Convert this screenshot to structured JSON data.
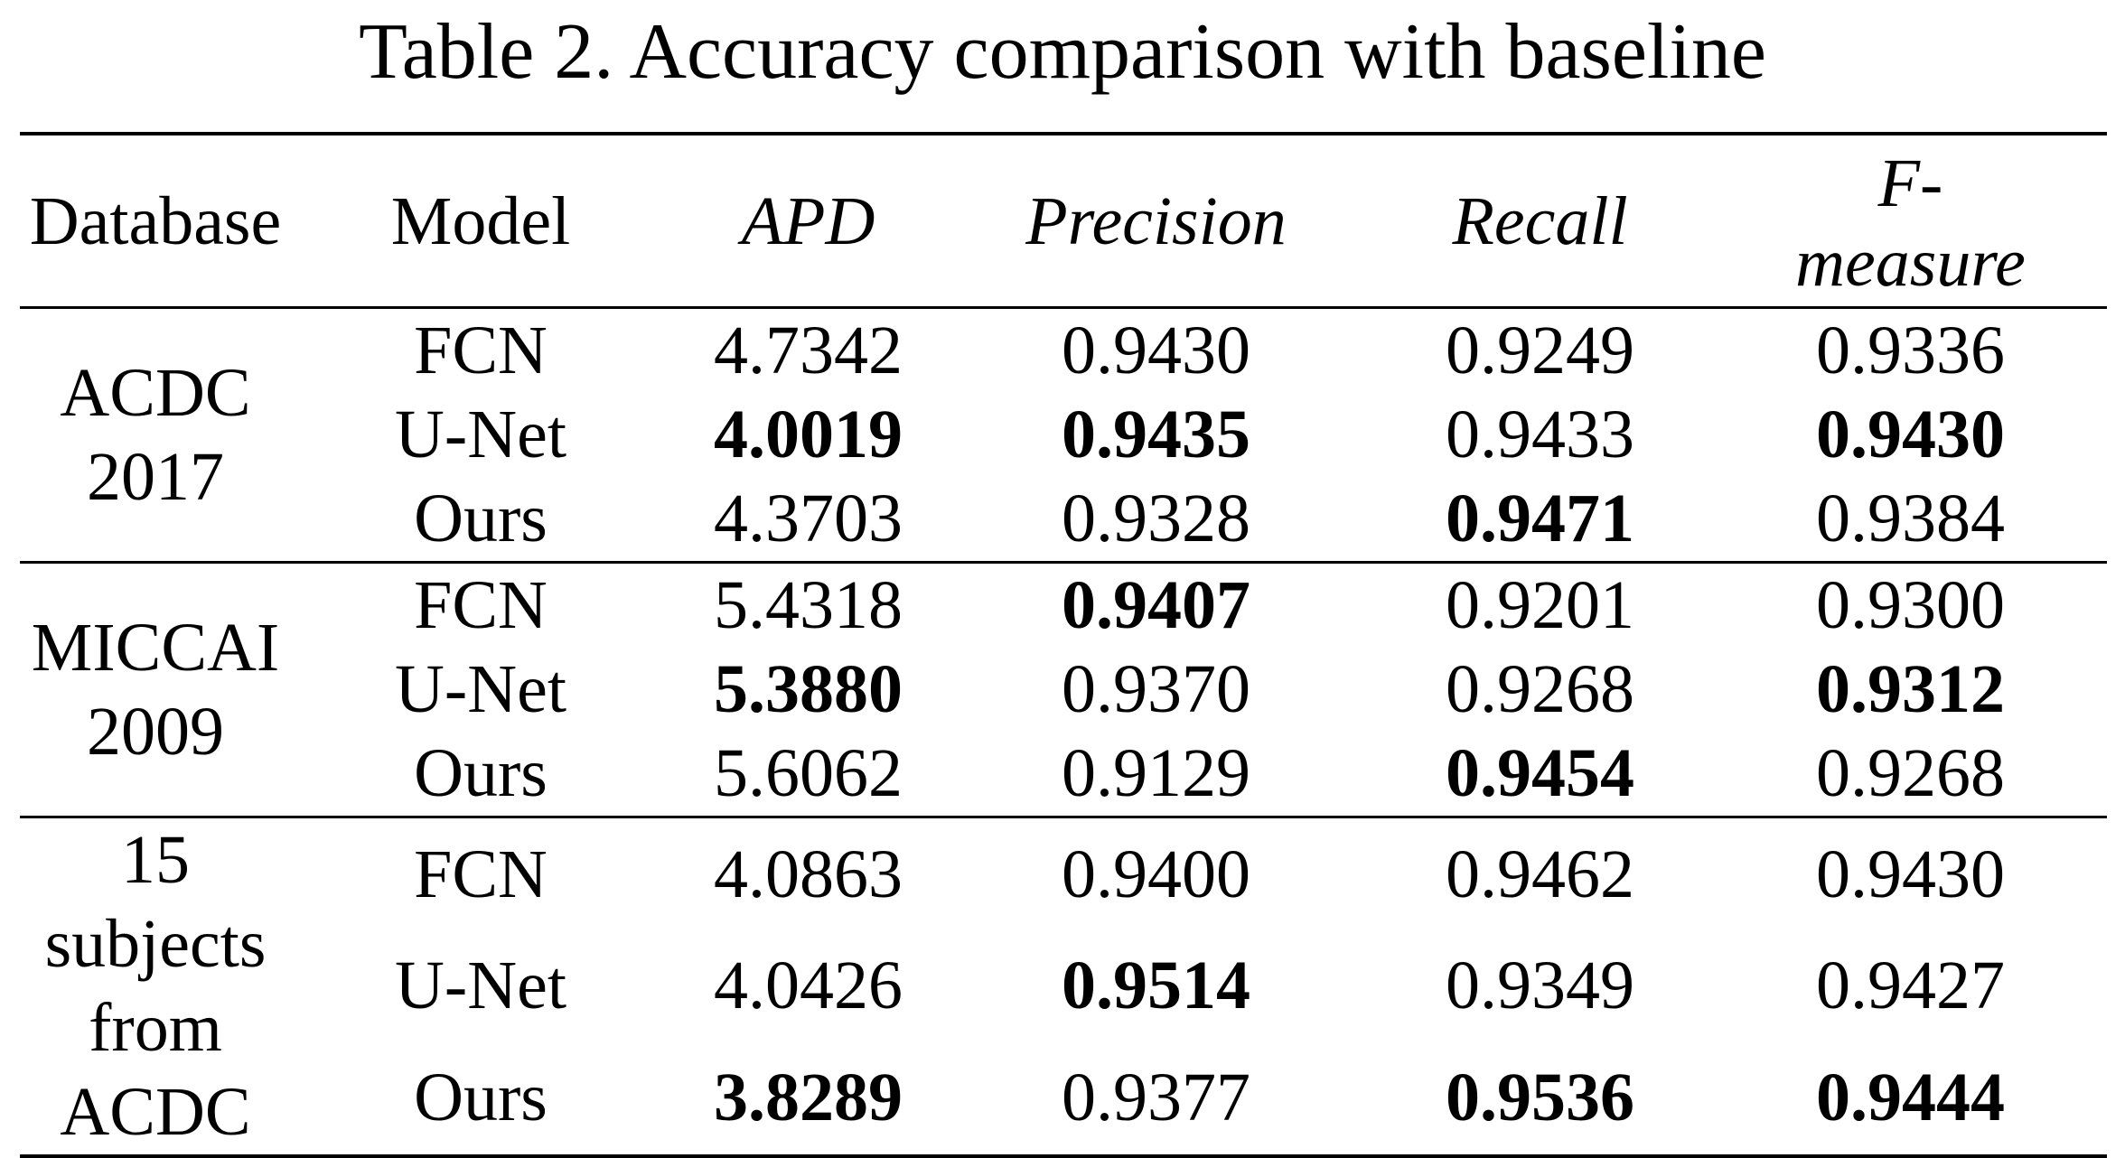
{
  "caption": "Table 2. Accuracy comparison with baseline",
  "table": {
    "headers": {
      "database": "Database",
      "model": "Model",
      "apd": "APD",
      "precision": "Precision",
      "recall": "Recall",
      "fmeasure_line1": "F-",
      "fmeasure_line2": "measure"
    },
    "groups": [
      {
        "database_line1": "ACDC",
        "database_line2": "2017",
        "database_line3": "",
        "rows": [
          {
            "model": "FCN",
            "apd": "4.7342",
            "precision": "0.9430",
            "recall": "0.9249",
            "fmeasure": "0.9336",
            "bold": {
              "apd": false,
              "precision": false,
              "recall": false,
              "fmeasure": false
            }
          },
          {
            "model": "U-Net",
            "apd": "4.0019",
            "precision": "0.9435",
            "recall": "0.9433",
            "fmeasure": "0.9430",
            "bold": {
              "apd": true,
              "precision": true,
              "recall": false,
              "fmeasure": true
            }
          },
          {
            "model": "Ours",
            "apd": "4.3703",
            "precision": "0.9328",
            "recall": "0.9471",
            "fmeasure": "0.9384",
            "bold": {
              "apd": false,
              "precision": false,
              "recall": true,
              "fmeasure": false
            }
          }
        ]
      },
      {
        "database_line1": "MICCAI",
        "database_line2": "2009",
        "database_line3": "",
        "rows": [
          {
            "model": "FCN",
            "apd": "5.4318",
            "precision": "0.9407",
            "recall": "0.9201",
            "fmeasure": "0.9300",
            "bold": {
              "apd": false,
              "precision": true,
              "recall": false,
              "fmeasure": false
            }
          },
          {
            "model": "U-Net",
            "apd": "5.3880",
            "precision": "0.9370",
            "recall": "0.9268",
            "fmeasure": "0.9312",
            "bold": {
              "apd": true,
              "precision": false,
              "recall": false,
              "fmeasure": true
            }
          },
          {
            "model": "Ours",
            "apd": "5.6062",
            "precision": "0.9129",
            "recall": "0.9454",
            "fmeasure": "0.9268",
            "bold": {
              "apd": false,
              "precision": false,
              "recall": true,
              "fmeasure": false
            }
          }
        ]
      },
      {
        "database_line1": "15 subjects",
        "database_line2": "from",
        "database_line3": "ACDC",
        "rows": [
          {
            "model": "FCN",
            "apd": "4.0863",
            "precision": "0.9400",
            "recall": "0.9462",
            "fmeasure": "0.9430",
            "bold": {
              "apd": false,
              "precision": false,
              "recall": false,
              "fmeasure": false
            }
          },
          {
            "model": "U-Net",
            "apd": "4.0426",
            "precision": "0.9514",
            "recall": "0.9349",
            "fmeasure": "0.9427",
            "bold": {
              "apd": false,
              "precision": true,
              "recall": false,
              "fmeasure": false
            }
          },
          {
            "model": "Ours",
            "apd": "3.8289",
            "precision": "0.9377",
            "recall": "0.9536",
            "fmeasure": "0.9444",
            "bold": {
              "apd": true,
              "precision": false,
              "recall": true,
              "fmeasure": true
            }
          }
        ]
      }
    ]
  }
}
